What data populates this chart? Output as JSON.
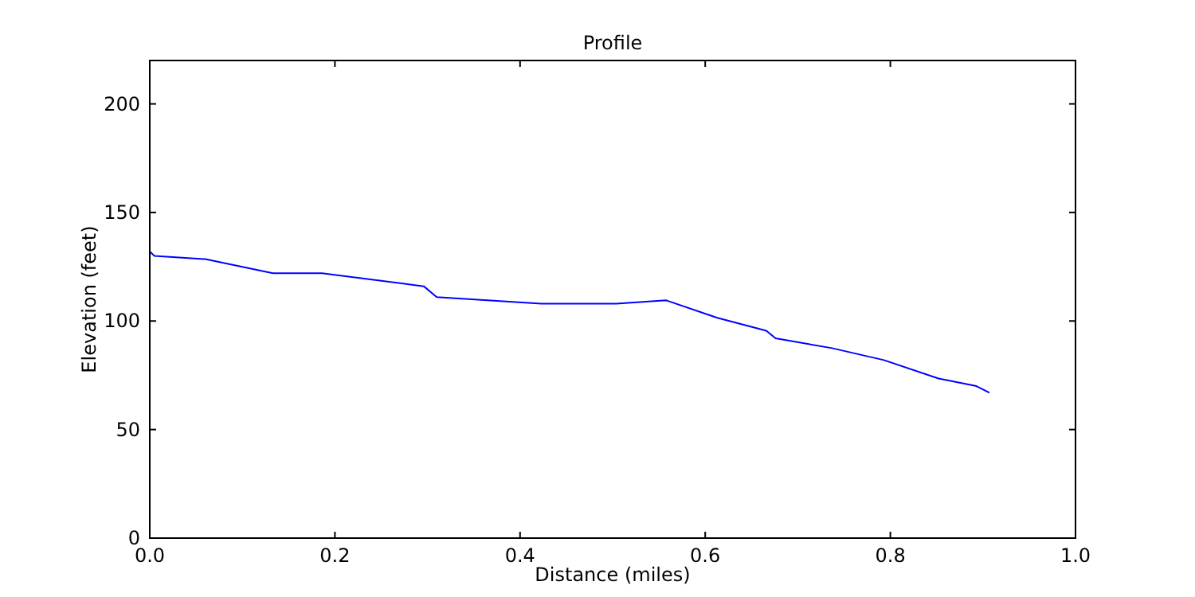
{
  "chart_data": {
    "type": "line",
    "title": "Profile",
    "xlabel": "Distance (miles)",
    "ylabel": "Elevation (feet)",
    "x": [
      0,
      0.005,
      0.06,
      0.133,
      0.186,
      0.296,
      0.31,
      0.423,
      0.504,
      0.558,
      0.613,
      0.666,
      0.676,
      0.737,
      0.793,
      0.852,
      0.893,
      0.907
    ],
    "series": [
      {
        "color": "#0000ff",
        "values": [
          132,
          130,
          128.5,
          122,
          122,
          116,
          111,
          108,
          108,
          109.5,
          101.5,
          95.5,
          92,
          87.5,
          82,
          73.5,
          70,
          67
        ]
      }
    ],
    "xlim": [
      0,
      1
    ],
    "xticks": [
      {
        "value": 0,
        "label": "0.0"
      },
      {
        "value": 0.2,
        "label": "0.2"
      },
      {
        "value": 0.4,
        "label": "0.4"
      },
      {
        "value": 0.6,
        "label": "0.6"
      },
      {
        "value": 0.8,
        "label": "0.8"
      },
      {
        "value": 1,
        "label": "1.0"
      }
    ],
    "ylim": [
      0,
      220
    ],
    "yticks": [
      0,
      50,
      100,
      150,
      200
    ],
    "grid": false,
    "marker": "none",
    "line_style": "solid"
  }
}
